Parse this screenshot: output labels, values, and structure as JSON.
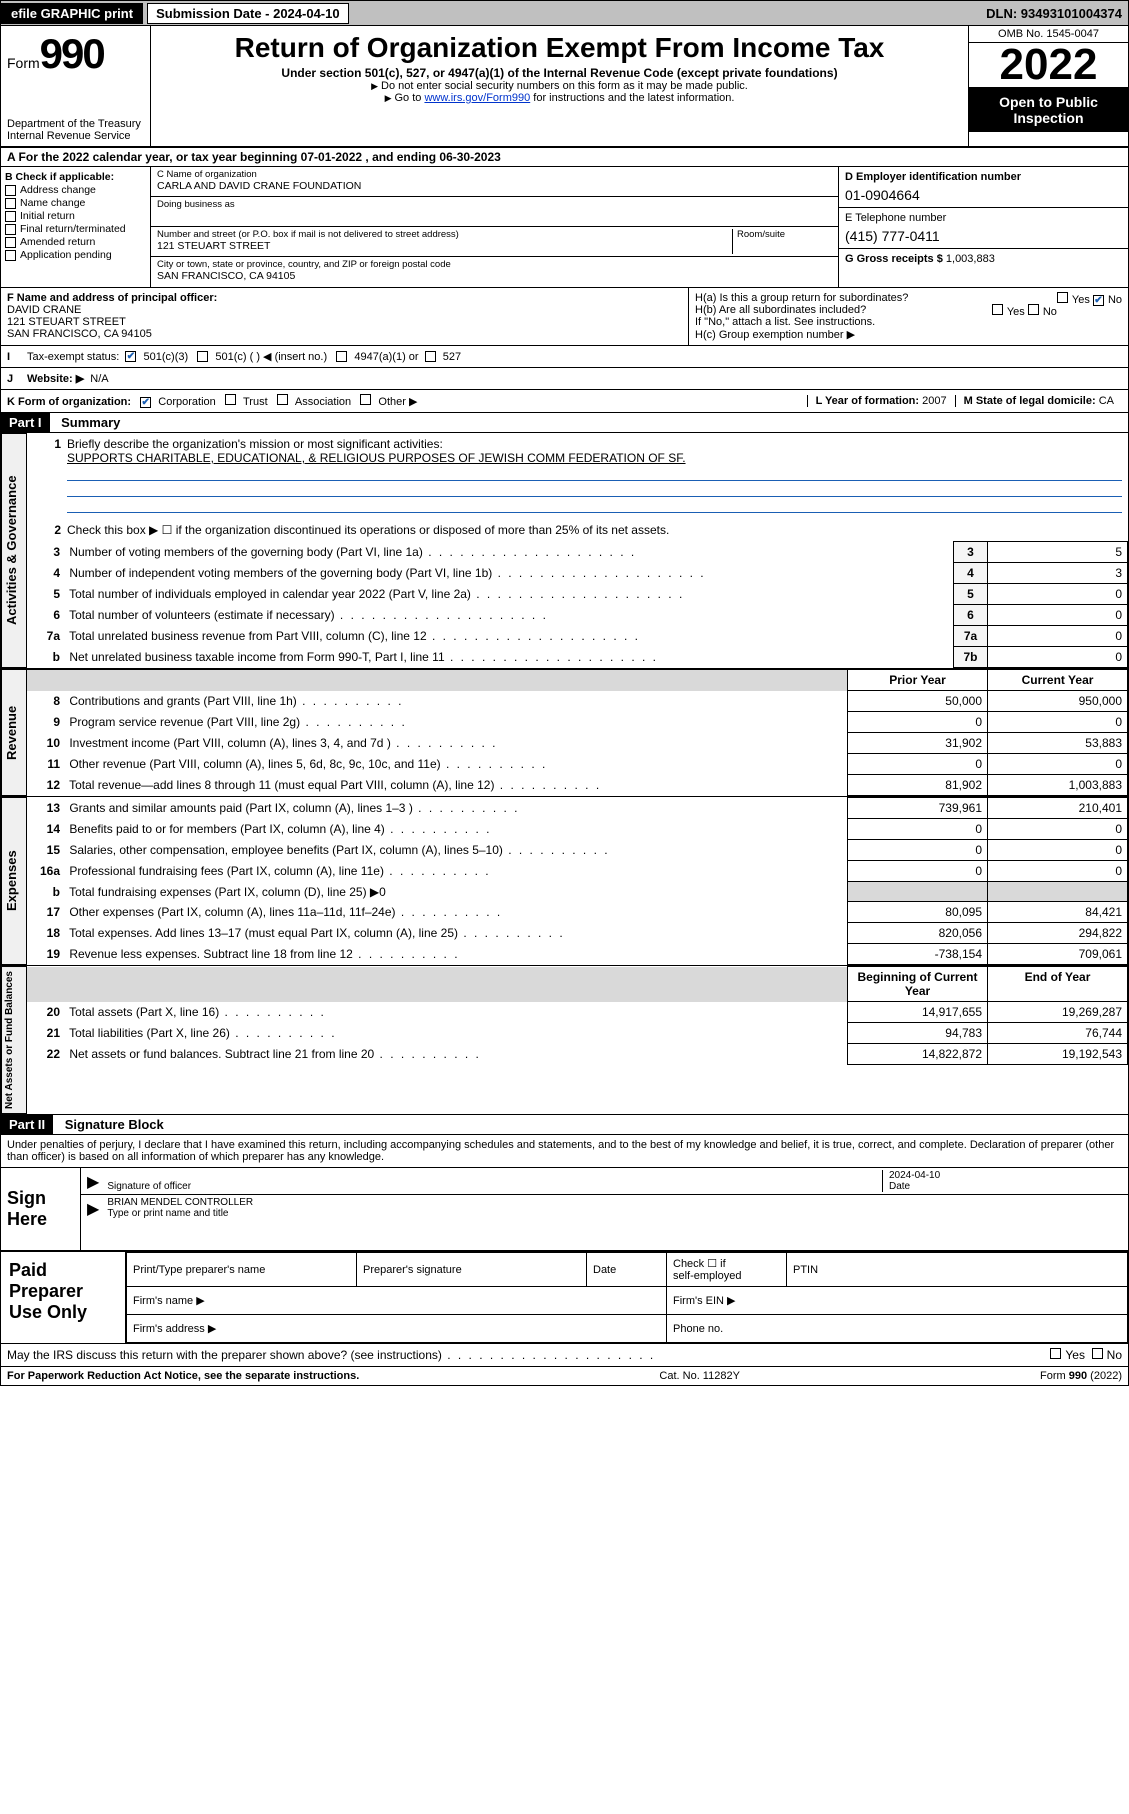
{
  "topbar": {
    "efile": "efile GRAPHIC print",
    "sub_label": "Submission Date - 2024-04-10",
    "dln": "DLN: 93493101004374"
  },
  "header": {
    "form_word": "Form",
    "form_num": "990",
    "dept": "Department of the Treasury",
    "irs": "Internal Revenue Service",
    "title": "Return of Organization Exempt From Income Tax",
    "sub1": "Under section 501(c), 527, or 4947(a)(1) of the Internal Revenue Code (except private foundations)",
    "sub2": "Do not enter social security numbers on this form as it may be made public.",
    "sub3_pre": "Go to ",
    "sub3_link": "www.irs.gov/Form990",
    "sub3_post": " for instructions and the latest information.",
    "omb": "OMB No. 1545-0047",
    "year": "2022",
    "inspect": "Open to Public Inspection"
  },
  "period": {
    "label_a": "A For the 2022 calendar year, or tax year beginning ",
    "begin": "07-01-2022",
    "mid": " , and ending ",
    "end": "06-30-2023"
  },
  "B": {
    "title": "B Check if applicable:",
    "items": [
      "Address change",
      "Name change",
      "Initial return",
      "Final return/terminated",
      "Amended return",
      "Application pending"
    ]
  },
  "C": {
    "name_lab": "C Name of organization",
    "name": "CARLA AND DAVID CRANE FOUNDATION",
    "dba_lab": "Doing business as",
    "dba": "",
    "addr_lab": "Number and street (or P.O. box if mail is not delivered to street address)",
    "room_lab": "Room/suite",
    "addr": "121 STEUART STREET",
    "city_lab": "City or town, state or province, country, and ZIP or foreign postal code",
    "city": "SAN FRANCISCO, CA  94105"
  },
  "D": {
    "ein_lab": "D Employer identification number",
    "ein": "01-0904664",
    "tel_lab": "E Telephone number",
    "tel": "(415) 777-0411",
    "gross_lab": "G Gross receipts $",
    "gross": "1,003,883"
  },
  "F": {
    "lab": "F Name and address of principal officer:",
    "name": "DAVID CRANE",
    "addr1": "121 STEUART STREET",
    "addr2": "SAN FRANCISCO, CA  94105"
  },
  "H": {
    "a": "H(a)  Is this a group return for subordinates?",
    "b": "H(b)  Are all subordinates included?",
    "b2": "If \"No,\" attach a list. See instructions.",
    "c": "H(c)  Group exemption number ▶",
    "yes": "Yes",
    "no": "No"
  },
  "I": {
    "lab": "Tax-exempt status:",
    "opts": [
      "501(c)(3)",
      "501(c) (  ) ◀ (insert no.)",
      "4947(a)(1) or",
      "527"
    ]
  },
  "J": {
    "lab": "Website: ▶",
    "val": "N/A"
  },
  "K": {
    "lab": "K Form of organization:",
    "opts": [
      "Corporation",
      "Trust",
      "Association",
      "Other ▶"
    ]
  },
  "L": {
    "lab": "L Year of formation:",
    "val": "2007"
  },
  "M": {
    "lab": "M State of legal domicile:",
    "val": "CA"
  },
  "part1": {
    "num": "Part I",
    "title": "Summary"
  },
  "summary": {
    "line1_lab": "Briefly describe the organization's mission or most significant activities:",
    "line1_val": "SUPPORTS CHARITABLE, EDUCATIONAL, & RELIGIOUS PURPOSES OF JEWISH COMM FEDERATION OF SF.",
    "line2": "Check this box ▶ ☐  if the organization discontinued its operations or disposed of more than 25% of its net assets.",
    "sections": {
      "gov": "Activities & Governance",
      "rev": "Revenue",
      "exp": "Expenses",
      "net": "Net Assets or Fund Balances"
    },
    "col_prior": "Prior Year",
    "col_current": "Current Year",
    "col_boy": "Beginning of Current Year",
    "col_eoy": "End of Year",
    "rows_gov": [
      {
        "n": "3",
        "t": "Number of voting members of the governing body (Part VI, line 1a)",
        "box": "3",
        "v": "5"
      },
      {
        "n": "4",
        "t": "Number of independent voting members of the governing body (Part VI, line 1b)",
        "box": "4",
        "v": "3"
      },
      {
        "n": "5",
        "t": "Total number of individuals employed in calendar year 2022 (Part V, line 2a)",
        "box": "5",
        "v": "0"
      },
      {
        "n": "6",
        "t": "Total number of volunteers (estimate if necessary)",
        "box": "6",
        "v": "0"
      },
      {
        "n": "7a",
        "t": "Total unrelated business revenue from Part VIII, column (C), line 12",
        "box": "7a",
        "v": "0"
      },
      {
        "n": "b",
        "t": "Net unrelated business taxable income from Form 990-T, Part I, line 11",
        "box": "7b",
        "v": "0"
      }
    ],
    "rows_rev": [
      {
        "n": "8",
        "t": "Contributions and grants (Part VIII, line 1h)",
        "p": "50,000",
        "c": "950,000"
      },
      {
        "n": "9",
        "t": "Program service revenue (Part VIII, line 2g)",
        "p": "0",
        "c": "0"
      },
      {
        "n": "10",
        "t": "Investment income (Part VIII, column (A), lines 3, 4, and 7d )",
        "p": "31,902",
        "c": "53,883"
      },
      {
        "n": "11",
        "t": "Other revenue (Part VIII, column (A), lines 5, 6d, 8c, 9c, 10c, and 11e)",
        "p": "0",
        "c": "0"
      },
      {
        "n": "12",
        "t": "Total revenue—add lines 8 through 11 (must equal Part VIII, column (A), line 12)",
        "p": "81,902",
        "c": "1,003,883"
      }
    ],
    "rows_exp": [
      {
        "n": "13",
        "t": "Grants and similar amounts paid (Part IX, column (A), lines 1–3 )",
        "p": "739,961",
        "c": "210,401"
      },
      {
        "n": "14",
        "t": "Benefits paid to or for members (Part IX, column (A), line 4)",
        "p": "0",
        "c": "0"
      },
      {
        "n": "15",
        "t": "Salaries, other compensation, employee benefits (Part IX, column (A), lines 5–10)",
        "p": "0",
        "c": "0"
      },
      {
        "n": "16a",
        "t": "Professional fundraising fees (Part IX, column (A), line 11e)",
        "p": "0",
        "c": "0"
      },
      {
        "n": "b",
        "t": "Total fundraising expenses (Part IX, column (D), line 25) ▶0",
        "p": "",
        "c": "",
        "shade": true
      },
      {
        "n": "17",
        "t": "Other expenses (Part IX, column (A), lines 11a–11d, 11f–24e)",
        "p": "80,095",
        "c": "84,421"
      },
      {
        "n": "18",
        "t": "Total expenses. Add lines 13–17 (must equal Part IX, column (A), line 25)",
        "p": "820,056",
        "c": "294,822"
      },
      {
        "n": "19",
        "t": "Revenue less expenses. Subtract line 18 from line 12",
        "p": "-738,154",
        "c": "709,061"
      }
    ],
    "rows_net": [
      {
        "n": "20",
        "t": "Total assets (Part X, line 16)",
        "p": "14,917,655",
        "c": "19,269,287"
      },
      {
        "n": "21",
        "t": "Total liabilities (Part X, line 26)",
        "p": "94,783",
        "c": "76,744"
      },
      {
        "n": "22",
        "t": "Net assets or fund balances. Subtract line 21 from line 20",
        "p": "14,822,872",
        "c": "19,192,543"
      }
    ]
  },
  "part2": {
    "num": "Part II",
    "title": "Signature Block"
  },
  "penalty": "Under penalties of perjury, I declare that I have examined this return, including accompanying schedules and statements, and to the best of my knowledge and belief, it is true, correct, and complete. Declaration of preparer (other than officer) is based on all information of which preparer has any knowledge.",
  "sign": {
    "here": "Sign Here",
    "sig_lab": "Signature of officer",
    "date_lab": "Date",
    "date_val": "2024-04-10",
    "name_val": "BRIAN MENDEL CONTROLLER",
    "name_lab": "Type or print name and title"
  },
  "prep": {
    "label": "Paid Preparer Use Only",
    "h1": "Print/Type preparer's name",
    "h2": "Preparer's signature",
    "h3": "Date",
    "h4_a": "Check ☐ if",
    "h4_b": "self-employed",
    "h5": "PTIN",
    "firm_name": "Firm's name    ▶",
    "firm_ein": "Firm's EIN ▶",
    "firm_addr": "Firm's address ▶",
    "phone": "Phone no."
  },
  "bottom": {
    "q": "May the IRS discuss this return with the preparer shown above? (see instructions)",
    "yes": "Yes",
    "no": "No",
    "pra": "For Paperwork Reduction Act Notice, see the separate instructions.",
    "cat": "Cat. No. 11282Y",
    "form": "Form 990 (2022)"
  }
}
